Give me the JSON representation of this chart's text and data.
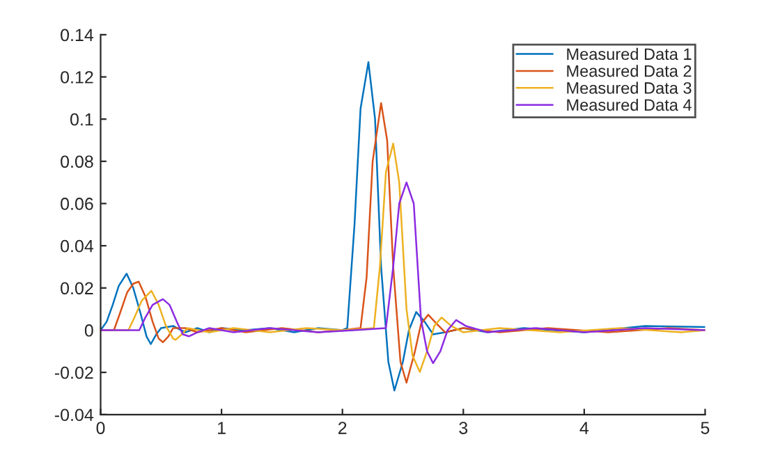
{
  "chart_data": {
    "type": "line",
    "xlim": [
      0,
      5
    ],
    "ylim": [
      -0.04,
      0.14
    ],
    "xticks": [
      0,
      1,
      2,
      3,
      4,
      5
    ],
    "yticks": [
      -0.04,
      -0.02,
      0,
      0.02,
      0.04,
      0.06,
      0.08,
      0.1,
      0.12,
      0.14
    ],
    "grid": false,
    "legend": "top right",
    "marker": "none",
    "line_style": "solid",
    "series": [
      {
        "name": "Measured Data 1",
        "color": "#0072bd",
        "x": [
          0,
          0.05,
          0.1,
          0.15,
          0.215,
          0.27,
          0.33,
          0.38,
          0.415,
          0.46,
          0.5,
          0.6,
          0.7,
          0.8,
          0.9,
          1.0,
          1.2,
          1.4,
          1.6,
          1.8,
          2.0,
          2.04,
          2.1,
          2.15,
          2.215,
          2.27,
          2.32,
          2.38,
          2.43,
          2.5,
          2.55,
          2.61,
          2.68,
          2.75,
          2.85,
          3.0,
          3.2,
          3.5,
          4.0,
          4.5,
          5.0
        ],
        "values": [
          0,
          0.004,
          0.012,
          0.021,
          0.0268,
          0.02,
          0.008,
          -0.003,
          -0.0066,
          -0.002,
          0.001,
          0.002,
          -0.001,
          0.001,
          -0.001,
          0.001,
          0,
          0.001,
          -0.001,
          0.001,
          0,
          0.001,
          0.05,
          0.105,
          0.127,
          0.1,
          0.03,
          -0.015,
          -0.0286,
          -0.015,
          0.0,
          0.0086,
          0.004,
          -0.002,
          -0.001,
          0.001,
          -0.001,
          0.001,
          -0.001,
          0.002,
          0.0015
        ]
      },
      {
        "name": "Measured Data 2",
        "color": "#d95319",
        "x": [
          0,
          0.11,
          0.16,
          0.22,
          0.27,
          0.315,
          0.37,
          0.43,
          0.48,
          0.515,
          0.56,
          0.6,
          0.7,
          0.8,
          1.0,
          1.2,
          1.5,
          1.8,
          2.0,
          2.15,
          2.2,
          2.25,
          2.32,
          2.37,
          2.42,
          2.48,
          2.53,
          2.6,
          2.65,
          2.71,
          2.78,
          2.85,
          3.0,
          3.3,
          3.7,
          4.2,
          4.7,
          5.0
        ],
        "values": [
          0,
          0,
          0.008,
          0.018,
          0.022,
          0.023,
          0.016,
          0.004,
          -0.004,
          -0.0057,
          -0.003,
          0.001,
          0.001,
          -0.001,
          0.001,
          -0.001,
          0.001,
          -0.001,
          0,
          0.001,
          0.025,
          0.08,
          0.1076,
          0.09,
          0.03,
          -0.015,
          -0.0249,
          -0.01,
          0.003,
          0.0073,
          0.003,
          -0.001,
          0.001,
          -0.001,
          0.001,
          -0.001,
          0.001,
          0
        ]
      },
      {
        "name": "Measured Data 3",
        "color": "#edb120",
        "x": [
          0,
          0.23,
          0.28,
          0.34,
          0.42,
          0.48,
          0.54,
          0.6,
          0.62,
          0.67,
          0.72,
          0.9,
          1.1,
          1.4,
          1.7,
          2.0,
          2.26,
          2.31,
          2.36,
          2.42,
          2.47,
          2.53,
          2.58,
          2.64,
          2.7,
          2.76,
          2.82,
          2.9,
          3.0,
          3.3,
          3.8,
          4.3,
          4.8,
          5.0
        ],
        "values": [
          0,
          0,
          0.006,
          0.014,
          0.0187,
          0.012,
          0.002,
          -0.004,
          -0.0046,
          -0.002,
          0.001,
          -0.001,
          0.001,
          -0.001,
          0.001,
          0,
          0.001,
          0.03,
          0.075,
          0.0884,
          0.07,
          0.01,
          -0.012,
          -0.0198,
          -0.01,
          0.002,
          0.006,
          0.002,
          -0.001,
          0.001,
          -0.001,
          0.001,
          -0.001,
          0
        ]
      },
      {
        "name": "Measured Data 4",
        "color": "#8b2be2",
        "x": [
          0,
          0.32,
          0.37,
          0.43,
          0.515,
          0.57,
          0.63,
          0.68,
          0.73,
          0.8,
          0.9,
          1.1,
          1.4,
          1.8,
          2.1,
          2.36,
          2.42,
          2.47,
          2.53,
          2.59,
          2.65,
          2.7,
          2.75,
          2.81,
          2.87,
          2.94,
          3.02,
          3.2,
          3.6,
          4.0,
          4.5,
          5.0
        ],
        "values": [
          0,
          0,
          0.006,
          0.012,
          0.0147,
          0.012,
          0.004,
          -0.002,
          -0.0029,
          -0.001,
          0.001,
          -0.001,
          0.001,
          -0.001,
          0,
          0.001,
          0.03,
          0.06,
          0.07,
          0.06,
          0.005,
          -0.01,
          -0.0156,
          -0.01,
          0.0,
          0.0048,
          0.002,
          -0.001,
          0.001,
          -0.001,
          0.001,
          0
        ]
      }
    ]
  }
}
